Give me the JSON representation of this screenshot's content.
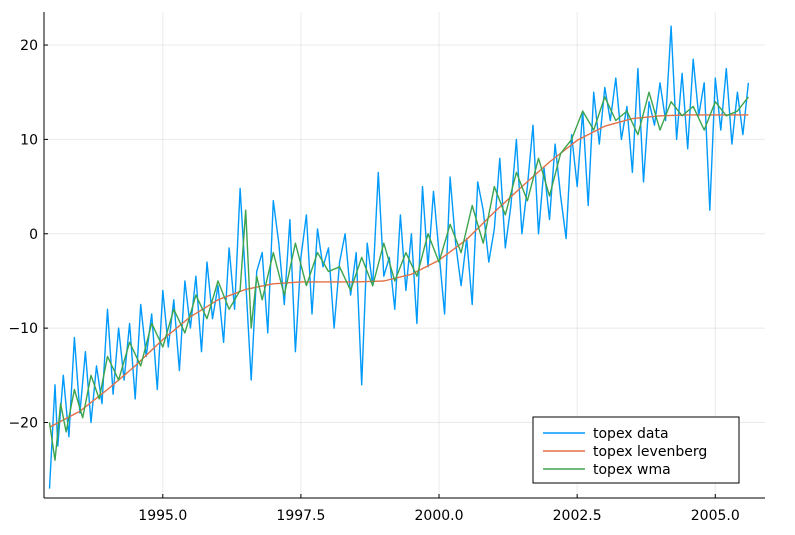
{
  "chart_data": {
    "type": "line",
    "title": "",
    "xlabel": "",
    "ylabel": "",
    "xlim": [
      1992.85,
      2005.9
    ],
    "ylim": [
      -28.0,
      23.5
    ],
    "x_ticks": [
      1995.0,
      1997.5,
      2000.0,
      2002.5,
      2005.0
    ],
    "x_tick_labels": [
      "1995.0",
      "1997.5",
      "2000.0",
      "2002.5",
      "2005.0"
    ],
    "y_ticks": [
      -20,
      -10,
      0,
      10,
      20
    ],
    "y_tick_labels": [
      "−20",
      "−10",
      "0",
      "10",
      "20"
    ],
    "grid": true,
    "legend_position": "bottom-right",
    "colors": {
      "data": "#009AFA",
      "levenberg": "#E26F46",
      "wma": "#3DA44E"
    },
    "series": [
      {
        "name": "topex data",
        "color": "#009AFA",
        "x": [
          1992.95,
          1993.05,
          1993.1,
          1993.2,
          1993.3,
          1993.4,
          1993.5,
          1993.6,
          1993.7,
          1993.8,
          1993.9,
          1994.0,
          1994.1,
          1994.2,
          1994.3,
          1994.4,
          1994.5,
          1994.6,
          1994.7,
          1994.8,
          1994.9,
          1995.0,
          1995.1,
          1995.2,
          1995.3,
          1995.4,
          1995.5,
          1995.6,
          1995.7,
          1995.8,
          1995.9,
          1996.0,
          1996.1,
          1996.2,
          1996.3,
          1996.4,
          1996.5,
          1996.6,
          1996.7,
          1996.8,
          1996.9,
          1997.0,
          1997.1,
          1997.2,
          1997.3,
          1997.4,
          1997.5,
          1997.6,
          1997.7,
          1997.8,
          1997.9,
          1998.0,
          1998.1,
          1998.2,
          1998.3,
          1998.4,
          1998.5,
          1998.6,
          1998.7,
          1998.8,
          1998.9,
          1999.0,
          1999.1,
          1999.2,
          1999.3,
          1999.4,
          1999.5,
          1999.6,
          1999.7,
          1999.8,
          1999.9,
          2000.0,
          2000.1,
          2000.2,
          2000.3,
          2000.4,
          2000.5,
          2000.6,
          2000.7,
          2000.8,
          2000.9,
          2001.0,
          2001.1,
          2001.2,
          2001.3,
          2001.4,
          2001.5,
          2001.6,
          2001.7,
          2001.8,
          2001.9,
          2002.0,
          2002.1,
          2002.2,
          2002.3,
          2002.4,
          2002.5,
          2002.6,
          2002.7,
          2002.8,
          2002.9,
          2003.0,
          2003.1,
          2003.2,
          2003.3,
          2003.4,
          2003.5,
          2003.6,
          2003.7,
          2003.8,
          2003.9,
          2004.0,
          2004.1,
          2004.2,
          2004.3,
          2004.4,
          2004.5,
          2004.6,
          2004.7,
          2004.8,
          2004.9,
          2005.0,
          2005.1,
          2005.2,
          2005.3,
          2005.4,
          2005.5,
          2005.6
        ],
        "y": [
          -27.0,
          -16.0,
          -22.5,
          -15.0,
          -21.5,
          -11.0,
          -19.0,
          -12.5,
          -20.0,
          -14.0,
          -18.0,
          -8.0,
          -17.0,
          -10.0,
          -15.5,
          -9.5,
          -17.5,
          -7.5,
          -13.0,
          -8.5,
          -16.5,
          -6.0,
          -12.0,
          -7.0,
          -14.5,
          -5.0,
          -10.0,
          -4.5,
          -12.5,
          -3.0,
          -9.0,
          -5.5,
          -11.5,
          -1.5,
          -8.0,
          4.8,
          -5.0,
          -15.5,
          -4.0,
          -2.0,
          -10.5,
          3.5,
          -1.0,
          -7.5,
          1.5,
          -12.5,
          -2.5,
          2.0,
          -8.5,
          0.5,
          -3.5,
          -1.5,
          -10.0,
          -3.0,
          0.0,
          -6.5,
          -2.0,
          -16.0,
          -1.0,
          -5.5,
          6.5,
          -4.5,
          -2.5,
          -8.0,
          2.0,
          -6.0,
          0.0,
          -9.5,
          5.0,
          -3.5,
          4.5,
          -2.0,
          -8.5,
          6.0,
          -1.0,
          -5.5,
          -0.5,
          -7.5,
          5.5,
          2.5,
          -3.0,
          0.5,
          8.0,
          -1.5,
          3.0,
          10.0,
          0.0,
          5.0,
          11.5,
          0.0,
          7.0,
          1.5,
          9.5,
          4.0,
          -0.5,
          10.5,
          5.0,
          13.0,
          3.0,
          15.0,
          9.5,
          15.5,
          12.0,
          16.5,
          10.0,
          13.5,
          6.5,
          17.5,
          5.5,
          14.0,
          11.5,
          16.0,
          12.0,
          22.0,
          10.0,
          17.0,
          9.0,
          18.5,
          12.5,
          16.0,
          2.5,
          16.5,
          11.0,
          17.5,
          9.5,
          15.0,
          10.5,
          16.0
        ]
      },
      {
        "name": "topex levenberg",
        "color": "#E26F46",
        "x": [
          1992.95,
          1993.5,
          1994.0,
          1994.5,
          1995.0,
          1995.5,
          1996.0,
          1996.5,
          1997.0,
          1997.5,
          1998.0,
          1998.5,
          1999.0,
          1999.5,
          2000.0,
          2000.5,
          2001.0,
          2001.5,
          2002.0,
          2002.5,
          2003.0,
          2003.5,
          2004.0,
          2004.5,
          2005.0,
          2005.6
        ],
        "y": [
          -20.5,
          -18.8,
          -16.5,
          -14.0,
          -11.2,
          -8.8,
          -7.0,
          -5.9,
          -5.3,
          -5.1,
          -5.1,
          -5.1,
          -5.0,
          -4.3,
          -2.8,
          -0.6,
          2.3,
          5.0,
          7.6,
          9.9,
          11.4,
          12.2,
          12.5,
          12.6,
          12.6,
          12.6
        ]
      },
      {
        "name": "topex wma",
        "color": "#3DA44E",
        "x": [
          1992.95,
          1993.05,
          1993.15,
          1993.25,
          1993.4,
          1993.55,
          1993.7,
          1993.85,
          1994.0,
          1994.2,
          1994.4,
          1994.6,
          1994.8,
          1995.0,
          1995.2,
          1995.4,
          1995.6,
          1995.8,
          1996.0,
          1996.2,
          1996.4,
          1996.5,
          1996.6,
          1996.7,
          1996.8,
          1997.0,
          1997.2,
          1997.4,
          1997.6,
          1997.8,
          1998.0,
          1998.2,
          1998.4,
          1998.6,
          1998.8,
          1999.0,
          1999.2,
          1999.4,
          1999.6,
          1999.8,
          2000.0,
          2000.2,
          2000.4,
          2000.6,
          2000.8,
          2001.0,
          2001.2,
          2001.4,
          2001.6,
          2001.8,
          2002.0,
          2002.2,
          2002.4,
          2002.6,
          2002.8,
          2003.0,
          2003.2,
          2003.4,
          2003.6,
          2003.8,
          2004.0,
          2004.2,
          2004.4,
          2004.6,
          2004.8,
          2005.0,
          2005.2,
          2005.4,
          2005.6
        ],
        "y": [
          -20.0,
          -24.0,
          -18.0,
          -21.0,
          -16.5,
          -19.5,
          -15.0,
          -17.5,
          -13.0,
          -15.5,
          -11.5,
          -14.0,
          -9.5,
          -12.0,
          -8.0,
          -10.5,
          -6.5,
          -9.0,
          -5.0,
          -8.0,
          -6.0,
          2.5,
          -10.0,
          -4.5,
          -7.0,
          -2.0,
          -6.5,
          -1.0,
          -5.5,
          -2.0,
          -4.0,
          -3.5,
          -6.0,
          -2.5,
          -5.5,
          -1.0,
          -5.0,
          -2.0,
          -4.5,
          0.0,
          -3.0,
          1.0,
          -2.0,
          3.0,
          -1.0,
          5.0,
          2.0,
          6.5,
          3.5,
          8.0,
          4.0,
          8.5,
          10.0,
          13.0,
          11.0,
          14.5,
          12.0,
          13.0,
          10.5,
          15.0,
          11.0,
          14.0,
          12.5,
          13.5,
          11.0,
          14.0,
          12.5,
          13.0,
          14.5
        ]
      }
    ]
  }
}
